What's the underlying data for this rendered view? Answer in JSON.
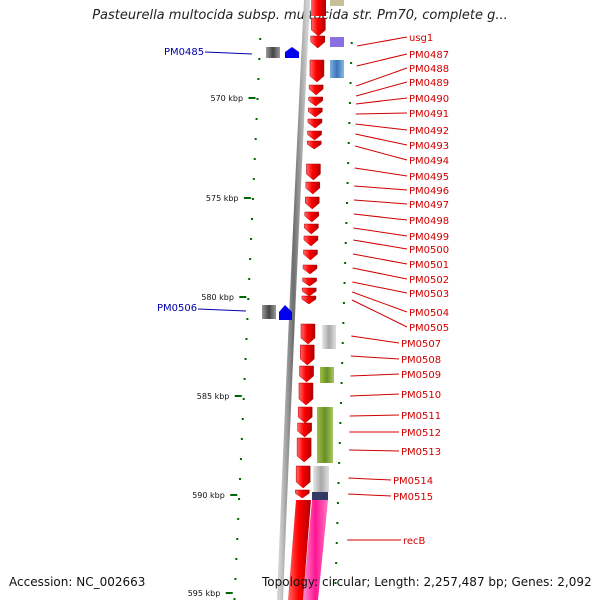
{
  "title": "Pasteurella multocida subsp. multocida str. Pm70, complete g...",
  "footer": {
    "accession": "Accession: NC_002663",
    "topology": "Topology: circular; Length: 2,257,487 bp; Genes: 2,092"
  },
  "ruler": [
    {
      "label": "570 kbp"
    },
    {
      "label": "575 kbp"
    },
    {
      "label": "580 kbp"
    },
    {
      "label": "585 kbp"
    },
    {
      "label": "590 kbp"
    },
    {
      "label": "595 kbp"
    }
  ],
  "genes_right": [
    {
      "label": "usg1"
    },
    {
      "label": "PM0487"
    },
    {
      "label": "PM0488"
    },
    {
      "label": "PM0489"
    },
    {
      "label": "PM0490"
    },
    {
      "label": "PM0491"
    },
    {
      "label": "PM0492"
    },
    {
      "label": "PM0493"
    },
    {
      "label": "PM0494"
    },
    {
      "label": "PM0495"
    },
    {
      "label": "PM0496"
    },
    {
      "label": "PM0497"
    },
    {
      "label": "PM0498"
    },
    {
      "label": "PM0499"
    },
    {
      "label": "PM0500"
    },
    {
      "label": "PM0501"
    },
    {
      "label": "PM0502"
    },
    {
      "label": "PM0503"
    },
    {
      "label": "PM0504"
    },
    {
      "label": "PM0505"
    },
    {
      "label": "PM0507"
    },
    {
      "label": "PM0508"
    },
    {
      "label": "PM0509"
    },
    {
      "label": "PM0510"
    },
    {
      "label": "PM0511"
    },
    {
      "label": "PM0512"
    },
    {
      "label": "PM0513"
    },
    {
      "label": "PM0514"
    },
    {
      "label": "PM0515"
    },
    {
      "label": "recB"
    }
  ],
  "genes_left": [
    {
      "label": "PM0485"
    },
    {
      "label": "PM0506"
    }
  ],
  "colors": {
    "forward_gene": "#e60000",
    "reverse_gene": "#0000ee",
    "label_right": "#d00000",
    "label_left": "#0000aa",
    "tick": "#006600",
    "backbone": "#888888",
    "cog_green": "#6b8e23",
    "cog_blue": "#4a7fbf",
    "cog_violet": "#8a6fe0",
    "cog_pink": "#ff2a9a",
    "cog_gray": "#b0b0b0"
  }
}
